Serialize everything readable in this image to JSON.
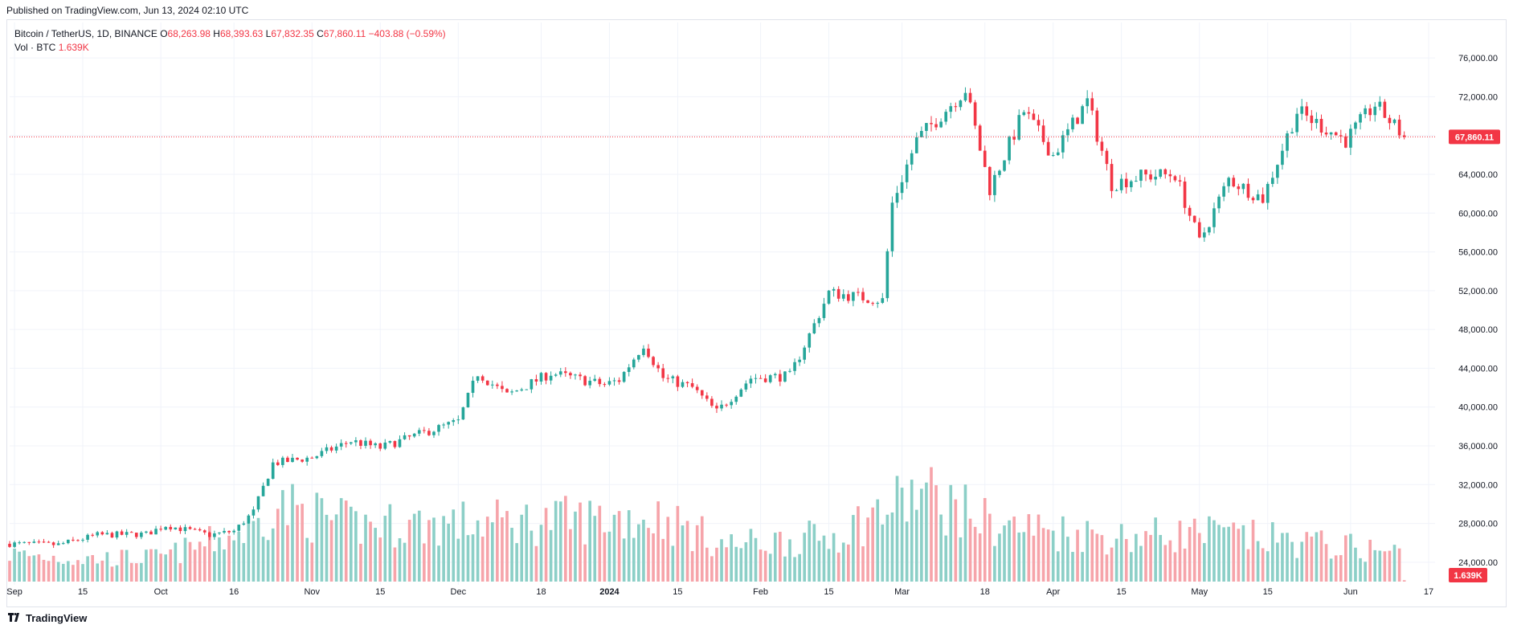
{
  "header": {
    "published": "Published on TradingView.com, Jun 13, 2024 02:10 UTC"
  },
  "legend": {
    "symbol": "Bitcoin / TetherUS, 1D, BINANCE",
    "o_label": "O",
    "o_value": "68,263.98",
    "h_label": "H",
    "h_value": "68,393.63",
    "l_label": "L",
    "l_value": "67,832.35",
    "c_label": "C",
    "c_value": "67,860.11",
    "change": "−403.88 (−0.59%)",
    "vol_label": "Vol · BTC",
    "vol_value": "1.639K"
  },
  "footer": {
    "brand": "TradingView"
  },
  "colors": {
    "up": "#26a69a",
    "down": "#f23645",
    "up_volume": "#8ccfc7",
    "down_volume": "#f6a4aa",
    "grid": "#f0f3fa",
    "axis_text": "#131722"
  },
  "chart_data": {
    "type": "candlestick",
    "title": "",
    "symbol": "Bitcoin / TetherUS",
    "interval": "1D",
    "exchange": "BINANCE",
    "x_range": [
      "2023-08-31",
      "2024-06-17"
    ],
    "ylim": [
      22000,
      78000
    ],
    "y_ticks": [
      76000,
      72000,
      68000,
      64000,
      60000,
      56000,
      52000,
      48000,
      44000,
      40000,
      36000,
      32000,
      28000,
      24000
    ],
    "y_tick_labels": [
      "76,000.00",
      "72,000.00",
      "68,000.00",
      "64,000.00",
      "60,000.00",
      "56,000.00",
      "52,000.00",
      "48,000.00",
      "44,000.00",
      "40,000.00",
      "36,000.00",
      "32,000.00",
      "28,000.00",
      "24,000.00"
    ],
    "x_ticks": [
      {
        "date": "2023-09-01",
        "label": "Sep",
        "bold": false
      },
      {
        "date": "2023-09-15",
        "label": "15",
        "bold": false
      },
      {
        "date": "2023-10-01",
        "label": "Oct",
        "bold": false
      },
      {
        "date": "2023-10-16",
        "label": "16",
        "bold": false
      },
      {
        "date": "2023-11-01",
        "label": "Nov",
        "bold": false
      },
      {
        "date": "2023-11-15",
        "label": "15",
        "bold": false
      },
      {
        "date": "2023-12-01",
        "label": "Dec",
        "bold": false
      },
      {
        "date": "2023-12-18",
        "label": "18",
        "bold": false
      },
      {
        "date": "2024-01-01",
        "label": "2024",
        "bold": true
      },
      {
        "date": "2024-01-15",
        "label": "15",
        "bold": false
      },
      {
        "date": "2024-02-01",
        "label": "Feb",
        "bold": false
      },
      {
        "date": "2024-02-15",
        "label": "15",
        "bold": false
      },
      {
        "date": "2024-03-01",
        "label": "Mar",
        "bold": false
      },
      {
        "date": "2024-03-18",
        "label": "18",
        "bold": false
      },
      {
        "date": "2024-04-01",
        "label": "Apr",
        "bold": false
      },
      {
        "date": "2024-04-15",
        "label": "15",
        "bold": false
      },
      {
        "date": "2024-05-01",
        "label": "May",
        "bold": false
      },
      {
        "date": "2024-05-15",
        "label": "15",
        "bold": false
      },
      {
        "date": "2024-06-01",
        "label": "Jun",
        "bold": false
      },
      {
        "date": "2024-06-17",
        "label": "17",
        "bold": false
      }
    ],
    "last_price": 67860.11,
    "last_price_label": "67,860.11",
    "last_volume_label": "1.639K",
    "price_anchors": [
      [
        "2023-08-31",
        25900
      ],
      [
        "2023-09-10",
        25800
      ],
      [
        "2023-09-18",
        26800
      ],
      [
        "2023-09-28",
        26900
      ],
      [
        "2023-10-02",
        27800
      ],
      [
        "2023-10-11",
        26800
      ],
      [
        "2023-10-16",
        27200
      ],
      [
        "2023-10-20",
        29200
      ],
      [
        "2023-10-24",
        34200
      ],
      [
        "2023-11-01",
        34800
      ],
      [
        "2023-11-09",
        36500
      ],
      [
        "2023-11-15",
        35800
      ],
      [
        "2023-11-23",
        37200
      ],
      [
        "2023-12-01",
        38500
      ],
      [
        "2023-12-05",
        43500
      ],
      [
        "2023-12-11",
        41200
      ],
      [
        "2023-12-20",
        43500
      ],
      [
        "2023-12-31",
        42300
      ],
      [
        "2024-01-03",
        42800
      ],
      [
        "2024-01-08",
        46500
      ],
      [
        "2024-01-12",
        43000
      ],
      [
        "2024-01-18",
        42000
      ],
      [
        "2024-01-23",
        39500
      ],
      [
        "2024-01-30",
        43000
      ],
      [
        "2024-02-07",
        43200
      ],
      [
        "2024-02-12",
        48500
      ],
      [
        "2024-02-15",
        51800
      ],
      [
        "2024-02-26",
        51000
      ],
      [
        "2024-02-28",
        61000
      ],
      [
        "2024-03-04",
        67500
      ],
      [
        "2024-03-14",
        72800
      ],
      [
        "2024-03-19",
        62500
      ],
      [
        "2024-03-26",
        70500
      ],
      [
        "2024-04-01",
        66000
      ],
      [
        "2024-04-08",
        71500
      ],
      [
        "2024-04-13",
        63000
      ],
      [
        "2024-04-19",
        63800
      ],
      [
        "2024-04-26",
        64000
      ],
      [
        "2024-05-01",
        57000
      ],
      [
        "2024-05-07",
        63500
      ],
      [
        "2024-05-14",
        61500
      ],
      [
        "2024-05-21",
        70500
      ],
      [
        "2024-05-31",
        67500
      ],
      [
        "2024-06-06",
        71200
      ],
      [
        "2024-06-12",
        67860
      ]
    ],
    "volume_anchors": [
      [
        "2023-08-31",
        34000
      ],
      [
        "2023-09-15",
        28000
      ],
      [
        "2023-10-01",
        30000
      ],
      [
        "2023-10-20",
        65000
      ],
      [
        "2023-10-24",
        95000
      ],
      [
        "2023-11-09",
        70000
      ],
      [
        "2023-12-05",
        72000
      ],
      [
        "2024-01-11",
        80000
      ],
      [
        "2024-01-25",
        45000
      ],
      [
        "2024-02-15",
        55000
      ],
      [
        "2024-03-05",
        110000
      ],
      [
        "2024-03-20",
        70000
      ],
      [
        "2024-04-15",
        55000
      ],
      [
        "2024-05-01",
        60000
      ],
      [
        "2024-05-20",
        50000
      ],
      [
        "2024-06-12",
        35000
      ]
    ],
    "volume_ylim": [
      0,
      150000
    ]
  }
}
